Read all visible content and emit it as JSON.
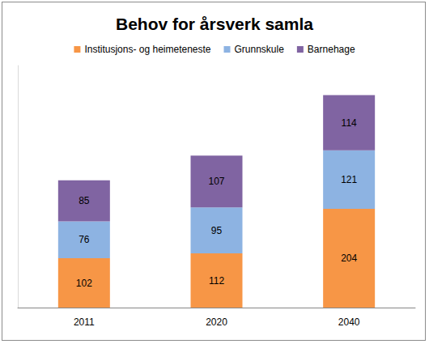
{
  "chart_data": {
    "type": "bar",
    "title": "Behov for årsverk samla",
    "categories": [
      "2011",
      "2020",
      "2040"
    ],
    "series": [
      {
        "name": "Institusjons- og heimeteneste",
        "color": "#F79646",
        "values": [
          102,
          112,
          204
        ]
      },
      {
        "name": "Grunnskule",
        "color": "#8DB3E2",
        "values": [
          76,
          95,
          121
        ]
      },
      {
        "name": "Barnehage",
        "color": "#8064A2",
        "values": [
          85,
          107,
          114
        ]
      }
    ],
    "totals": [
      263,
      315,
      438
    ],
    "ylim": [
      0,
      500
    ],
    "stacked": true,
    "data_labels": true,
    "legend": "top",
    "grid": false,
    "tick_labels": "x"
  }
}
